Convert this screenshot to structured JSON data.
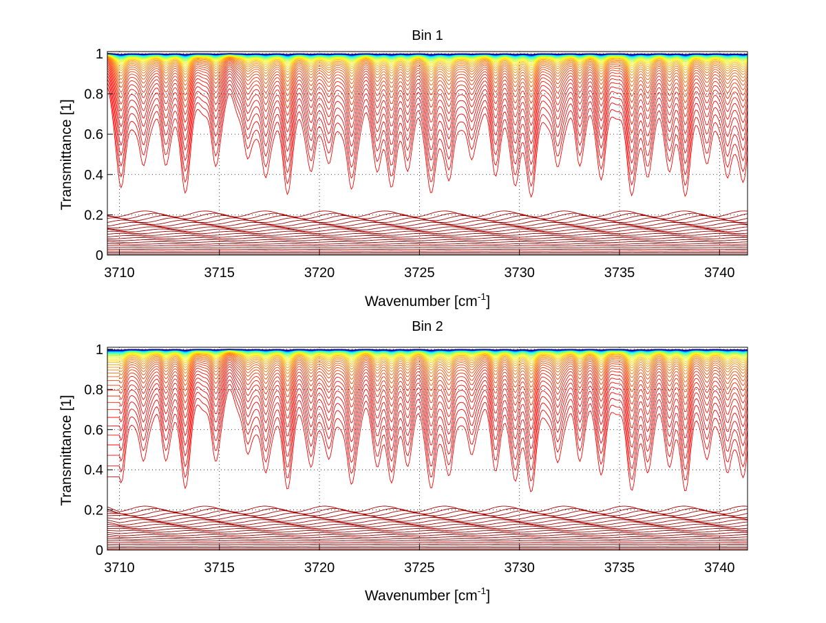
{
  "chart_data": [
    {
      "type": "line",
      "title": "Bin 1",
      "xlabel": "Wavenumber [cm",
      "xlabel_sup": "-1",
      "xlabel_end": "]",
      "ylabel": "Transmittance [1]",
      "xlim": [
        3709.4,
        3741.4
      ],
      "ylim": [
        0,
        1.01
      ],
      "xticks": [
        "3710",
        "3715",
        "3720",
        "3725",
        "3730",
        "3735",
        "3740"
      ],
      "yticks": [
        "0",
        "0.2",
        "0.4",
        "0.6",
        "0.8",
        "1"
      ],
      "grid": true,
      "series_count": 60,
      "colormap": "jet (blue = highest transmittance, dark red = lowest)",
      "absorption_lines_cm1": [
        3710.1,
        3711.2,
        3712.3,
        3713.3,
        3714.8,
        3716.4,
        3717.3,
        3718.4,
        3719.6,
        3720.5,
        3721.6,
        3722.9,
        3723.6,
        3724.4,
        3725.6,
        3726.5,
        3727.6,
        3728.8,
        3729.8,
        3730.6,
        3731.9,
        3733.0,
        3734.1,
        3735.6,
        3736.4,
        3737.5,
        3738.3,
        3739.4,
        3740.4,
        3741.2
      ],
      "absorption_line_strengths": [
        1.0,
        0.7,
        0.6,
        1.0,
        0.7,
        0.6,
        0.8,
        1.0,
        0.7,
        0.6,
        1.0,
        0.6,
        0.8,
        0.6,
        1.0,
        0.8,
        0.6,
        0.7,
        0.8,
        1.0,
        0.7,
        0.6,
        0.8,
        1.0,
        0.7,
        0.6,
        1.0,
        0.6,
        0.8,
        0.9
      ]
    },
    {
      "type": "line",
      "title": "Bin 2",
      "xlabel": "Wavenumber [cm",
      "xlabel_sup": "-1",
      "xlabel_end": "]",
      "ylabel": "Transmittance [1]",
      "xlim": [
        3709.4,
        3741.4
      ],
      "ylim": [
        0,
        1.01
      ],
      "xticks": [
        "3710",
        "3715",
        "3720",
        "3725",
        "3730",
        "3735",
        "3740"
      ],
      "yticks": [
        "0",
        "0.2",
        "0.4",
        "0.6",
        "0.8",
        "1"
      ],
      "grid": true,
      "series_count": 60,
      "colormap": "jet (blue = highest transmittance, dark red = lowest)",
      "absorption_lines_cm1": [
        3710.1,
        3711.2,
        3712.3,
        3713.3,
        3714.8,
        3716.4,
        3717.3,
        3718.4,
        3719.6,
        3720.5,
        3721.6,
        3722.9,
        3723.6,
        3724.4,
        3725.6,
        3726.5,
        3727.6,
        3728.8,
        3729.8,
        3730.6,
        3731.9,
        3733.0,
        3734.1,
        3735.6,
        3736.4,
        3737.5,
        3738.3,
        3739.4,
        3740.4,
        3741.2
      ],
      "absorption_line_strengths": [
        1.0,
        0.7,
        0.6,
        1.0,
        0.7,
        0.6,
        0.8,
        1.0,
        0.7,
        0.6,
        1.0,
        0.6,
        0.8,
        0.6,
        1.0,
        0.8,
        0.6,
        0.7,
        0.8,
        1.0,
        0.7,
        0.6,
        0.8,
        1.0,
        0.7,
        0.6,
        1.0,
        0.6,
        0.8,
        0.9
      ]
    }
  ]
}
